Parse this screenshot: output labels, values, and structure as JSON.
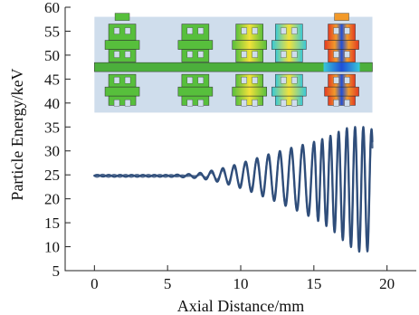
{
  "colors": {
    "trace": "#2f4e7a",
    "inset_bg": "#cfddec",
    "beam_pipe": "#4caf3c",
    "cavity_green": "#57bf3c",
    "cavity_green_dark": "#3f9d2c",
    "field_yellow": "#f2e23a",
    "field_cyan": "#38c8d8",
    "field_blue": "#1f4fd8",
    "field_red": "#e23b22",
    "field_orange": "#f29a2a"
  },
  "chart_data": {
    "type": "line",
    "xlabel": "Axial Distance/mm",
    "ylabel": "Particle Energy/keV",
    "xlim": [
      -2,
      22
    ],
    "ylim": [
      5,
      60
    ],
    "xticks": [
      0,
      5,
      10,
      15,
      20
    ],
    "yticks": [
      5,
      10,
      15,
      20,
      25,
      30,
      35,
      40,
      45,
      50,
      55,
      60
    ],
    "grid": false,
    "legend": "none",
    "series": [
      {
        "x": [
          0,
          1,
          2,
          3,
          4,
          5,
          6,
          7,
          7.5,
          8,
          8.5,
          9,
          9.5,
          10,
          10.5,
          11,
          11.5,
          12,
          12.5,
          13,
          13.5,
          14,
          14.5,
          15,
          15.5,
          16,
          16.5,
          17,
          17.5,
          18,
          18.5,
          19
        ],
        "envelope_max": [
          25.0,
          25.0,
          25.0,
          25.0,
          25.0,
          25.0,
          25.1,
          25.3,
          25.6,
          25.9,
          26.2,
          26.6,
          27.0,
          27.5,
          27.9,
          28.4,
          28.9,
          29.4,
          29.8,
          30.3,
          30.7,
          31.1,
          31.5,
          31.9,
          32.4,
          33.0,
          33.7,
          34.5,
          35.0,
          35.0,
          35.0,
          34.5
        ],
        "envelope_min": [
          24.7,
          24.6,
          24.6,
          24.6,
          24.6,
          24.6,
          24.5,
          24.3,
          24.1,
          23.8,
          23.5,
          23.1,
          22.7,
          22.2,
          21.7,
          21.1,
          20.5,
          19.9,
          19.3,
          18.6,
          18.0,
          17.3,
          16.6,
          15.9,
          15.0,
          14.0,
          12.8,
          11.3,
          10.0,
          9.0,
          8.8,
          9.5
        ],
        "oscillation_period_mm": 0.78
      }
    ],
    "inset": {
      "description_free": true,
      "ylim_band": [
        38,
        58
      ],
      "x_band": [
        0,
        19
      ],
      "pipe_y": 47.5,
      "cavities": [
        {
          "x_center": 1.9,
          "field": "green"
        },
        {
          "x_center": 6.9,
          "field": "green"
        },
        {
          "x_center": 10.6,
          "field": "green-yellow"
        },
        {
          "x_center": 13.3,
          "field": "cyan-yellow"
        },
        {
          "x_center": 16.9,
          "field": "red-blue"
        }
      ]
    }
  }
}
